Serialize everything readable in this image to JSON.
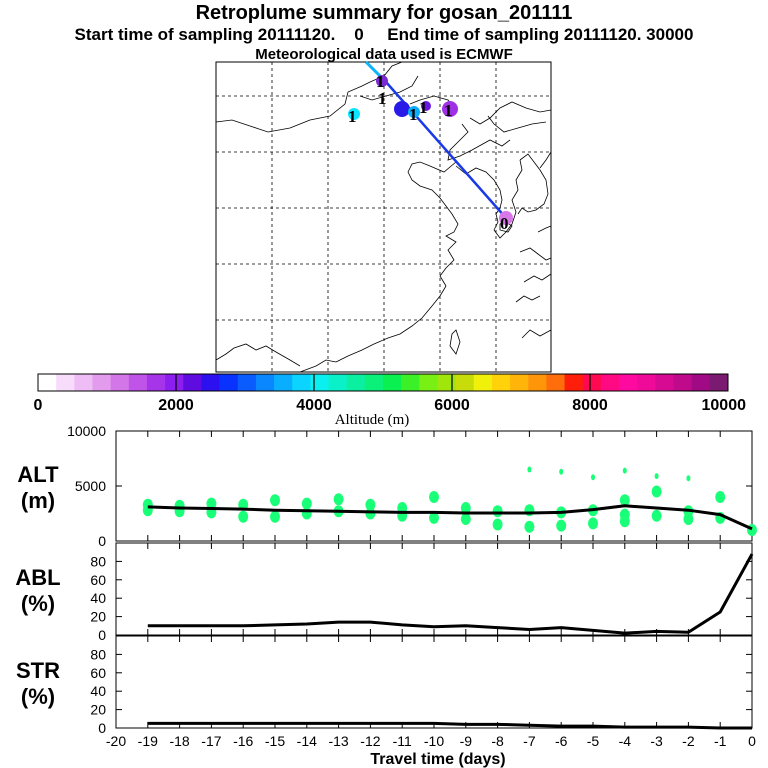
{
  "header": {
    "title": "Retroplume summary for gosan_201111",
    "subtitle1": "Start time of sampling 20111120.    0     End time of sampling 20111120. 30000",
    "subtitle2": "Meteorological data used is ECMWF"
  },
  "colorbar": {
    "label": "Altitude  (m)",
    "ticks": [
      "0",
      "2000",
      "4000",
      "6000",
      "8000",
      "10000"
    ],
    "range": [
      0,
      10000
    ],
    "colors": [
      "#ffffff",
      "#f7dcfb",
      "#efbdf5",
      "#e39bee",
      "#d377e8",
      "#c053e8",
      "#a635ea",
      "#8c1ff0",
      "#5e0ce0",
      "#2d10f0",
      "#0a32ff",
      "#0a5cff",
      "#0a86ff",
      "#0aaeff",
      "#0ad4ff",
      "#0af0f0",
      "#0af0c8",
      "#0af0a0",
      "#0af078",
      "#0af050",
      "#3cf028",
      "#78f014",
      "#a0e60a",
      "#c8dc0a",
      "#f0f00a",
      "#ffd20a",
      "#ffb40a",
      "#ff960a",
      "#ff6e0a",
      "#ff1e0a",
      "#ff0a50",
      "#ff0a82",
      "#ff0aa0",
      "#ef0a9a",
      "#d70a94",
      "#bf0a8c",
      "#a00a84",
      "#7a1a70"
    ]
  },
  "map": {
    "release_marker": "0",
    "cluster_label": "1"
  },
  "panels": [
    {
      "label_line1": "ALT",
      "label_line2": "(m)",
      "yticks": [
        "10000",
        "5000",
        "0"
      ]
    },
    {
      "label_line1": "ABL",
      "label_line2": "(%)",
      "yticks": [
        "80",
        "60",
        "40",
        "20",
        "0"
      ]
    },
    {
      "label_line1": "STR",
      "label_line2": "(%)",
      "yticks": [
        "80",
        "60",
        "40",
        "20",
        "0"
      ]
    }
  ],
  "chart_data": {
    "type": "line",
    "title": "Retroplume summary for gosan_201111",
    "xlabel": "Travel time (days)",
    "x_ticks": [
      "-20",
      "-19",
      "-18",
      "-17",
      "-16",
      "-15",
      "-14",
      "-13",
      "-12",
      "-11",
      "-10",
      "-9",
      "-8",
      "-7",
      "-6",
      "-5",
      "-4",
      "-3",
      "-2",
      "-1",
      "0"
    ],
    "x": [
      -19,
      -18,
      -17,
      -16,
      -15,
      -14,
      -13,
      -12,
      -11,
      -10,
      -9,
      -8,
      -7,
      -6,
      -5,
      -4,
      -3,
      -2,
      -1,
      0
    ],
    "xlim": [
      -20,
      0
    ],
    "series": [
      {
        "name": "ALT",
        "ylabel": "ALT (m)",
        "ylim": [
          0,
          10000
        ],
        "values": [
          3100,
          3000,
          2950,
          2900,
          2800,
          2750,
          2700,
          2650,
          2600,
          2600,
          2550,
          2550,
          2550,
          2600,
          2850,
          3200,
          3000,
          2800,
          2400,
          1100
        ]
      },
      {
        "name": "ABL",
        "ylabel": "ABL (%)",
        "ylim": [
          0,
          100
        ],
        "values": [
          10,
          10,
          10,
          10,
          11,
          12,
          14,
          14,
          11,
          9,
          10,
          8,
          6,
          8,
          5,
          2,
          4,
          3,
          25,
          88
        ]
      },
      {
        "name": "STR",
        "ylabel": "STR (%)",
        "ylim": [
          0,
          100
        ],
        "values": [
          5,
          5,
          5,
          5,
          5,
          5,
          5,
          5,
          5,
          5,
          4,
          4,
          3,
          2,
          2,
          1,
          1,
          1,
          0,
          0
        ]
      }
    ],
    "alt_clusters": [
      {
        "x": -19,
        "y": [
          3300,
          2800
        ]
      },
      {
        "x": -18,
        "y": [
          3200,
          2700
        ]
      },
      {
        "x": -17,
        "y": [
          3400,
          2600
        ]
      },
      {
        "x": -16,
        "y": [
          3300,
          2200
        ]
      },
      {
        "x": -15,
        "y": [
          3700,
          2200
        ]
      },
      {
        "x": -14,
        "y": [
          3400,
          2500
        ]
      },
      {
        "x": -13,
        "y": [
          3800,
          2700
        ]
      },
      {
        "x": -12,
        "y": [
          3300,
          2500
        ]
      },
      {
        "x": -11,
        "y": [
          3000,
          2300
        ]
      },
      {
        "x": -10,
        "y": [
          4000,
          2100
        ]
      },
      {
        "x": -9,
        "y": [
          3000,
          2000
        ]
      },
      {
        "x": -8,
        "y": [
          2700,
          1500
        ]
      },
      {
        "x": -7,
        "y": [
          6500,
          2800,
          1300
        ]
      },
      {
        "x": -6,
        "y": [
          6300,
          2600,
          1400
        ]
      },
      {
        "x": -5,
        "y": [
          5800,
          2800,
          1600
        ]
      },
      {
        "x": -4,
        "y": [
          6400,
          3700,
          2400,
          1800
        ]
      },
      {
        "x": -3,
        "y": [
          5900,
          4500,
          2300
        ]
      },
      {
        "x": -2,
        "y": [
          5700,
          2700,
          2000
        ]
      },
      {
        "x": -1,
        "y": [
          4000,
          2100
        ]
      },
      {
        "x": 0,
        "y": [
          1000
        ]
      }
    ]
  }
}
